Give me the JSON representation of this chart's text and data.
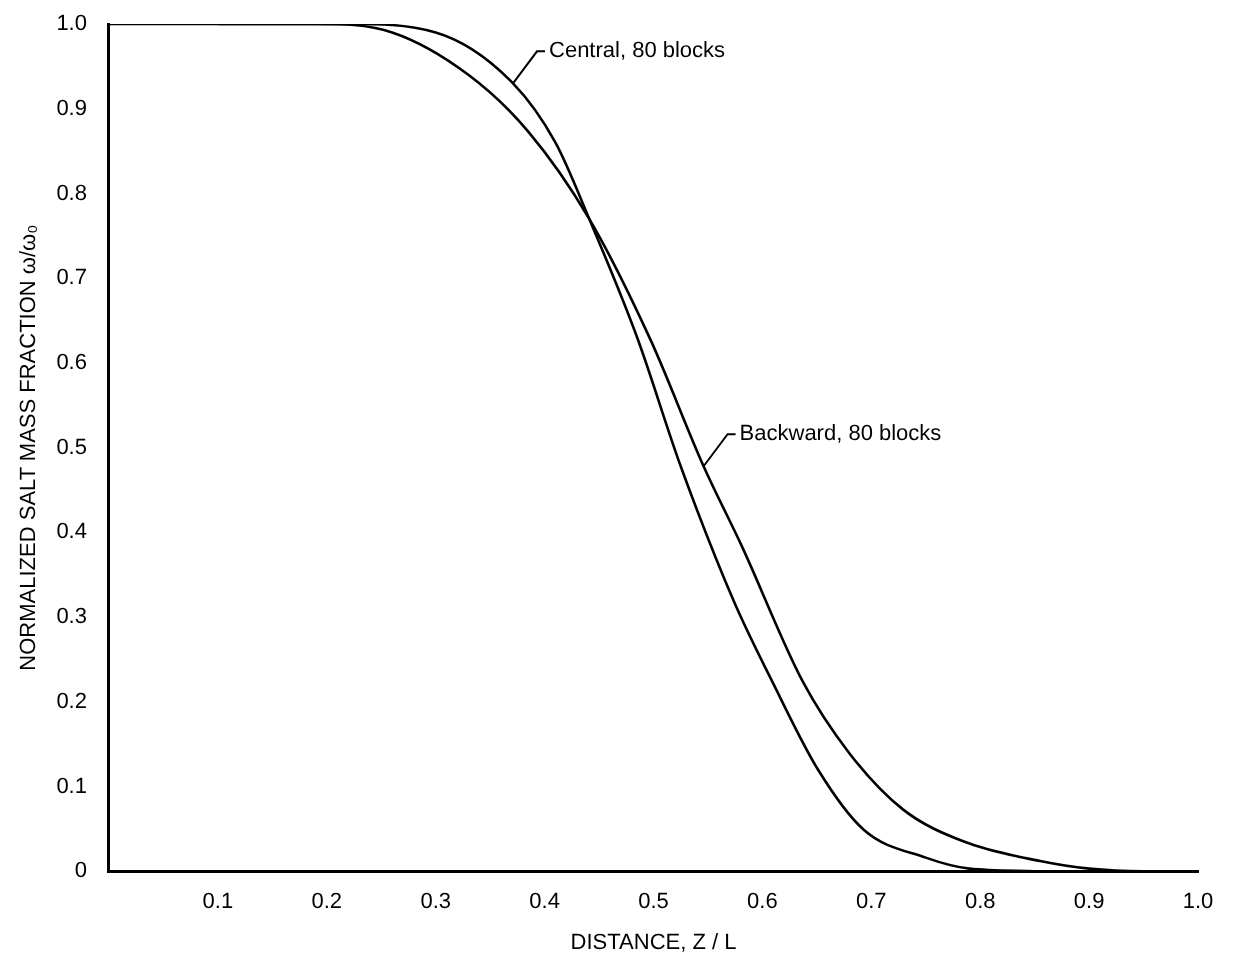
{
  "chart_data": {
    "type": "line",
    "xlabel": "DISTANCE, Z / L",
    "ylabel": "NORMALIZED SALT MASS FRACTION ω/ω₀",
    "xlim": [
      0,
      1.0
    ],
    "ylim": [
      0,
      1.0
    ],
    "xticks": [
      0.1,
      0.2,
      0.3,
      0.4,
      0.5,
      0.6,
      0.7,
      0.8,
      0.9,
      {
        "value": 1,
        "label": "1.0"
      }
    ],
    "yticks": [
      0,
      0.1,
      0.2,
      0.3,
      0.4,
      0.5,
      0.6,
      0.7,
      0.8,
      0.9,
      {
        "value": 1,
        "label": "1.0"
      }
    ],
    "grid": false,
    "legend": false,
    "marker": "none",
    "line_style": "solid",
    "series": [
      {
        "color": "#000000",
        "x": [
          0,
          0.22,
          0.3,
          0.371,
          0.41,
          0.441,
          0.485,
          0.525,
          0.574,
          0.609,
          0.651,
          0.693,
          0.75,
          0.79,
          0.85
        ],
        "values": [
          1,
          1,
          0.99,
          0.93,
          0.86,
          0.77,
          0.63,
          0.478,
          0.318,
          0.224,
          0.12,
          0.049,
          0.016,
          0.003,
          0
        ]
      },
      {
        "color": "#000000",
        "x": [
          0.1,
          0.19,
          0.26,
          0.33,
          0.385,
          0.441,
          0.497,
          0.546,
          0.581,
          0.637,
          0.68,
          0.729,
          0.785,
          0.855,
          0.9,
          0.95,
          1.0
        ],
        "values": [
          1,
          1,
          0.99,
          0.94,
          0.873,
          0.77,
          0.628,
          0.478,
          0.384,
          0.224,
          0.139,
          0.073,
          0.035,
          0.012,
          0.003,
          0,
          0
        ]
      }
    ],
    "annotations": [
      {
        "text": "Central, 80 blocks",
        "x": 0.371,
        "y": 0.93
      },
      {
        "text": "Backward, 80 blocks",
        "x": 0.546,
        "y": 0.478
      }
    ]
  }
}
